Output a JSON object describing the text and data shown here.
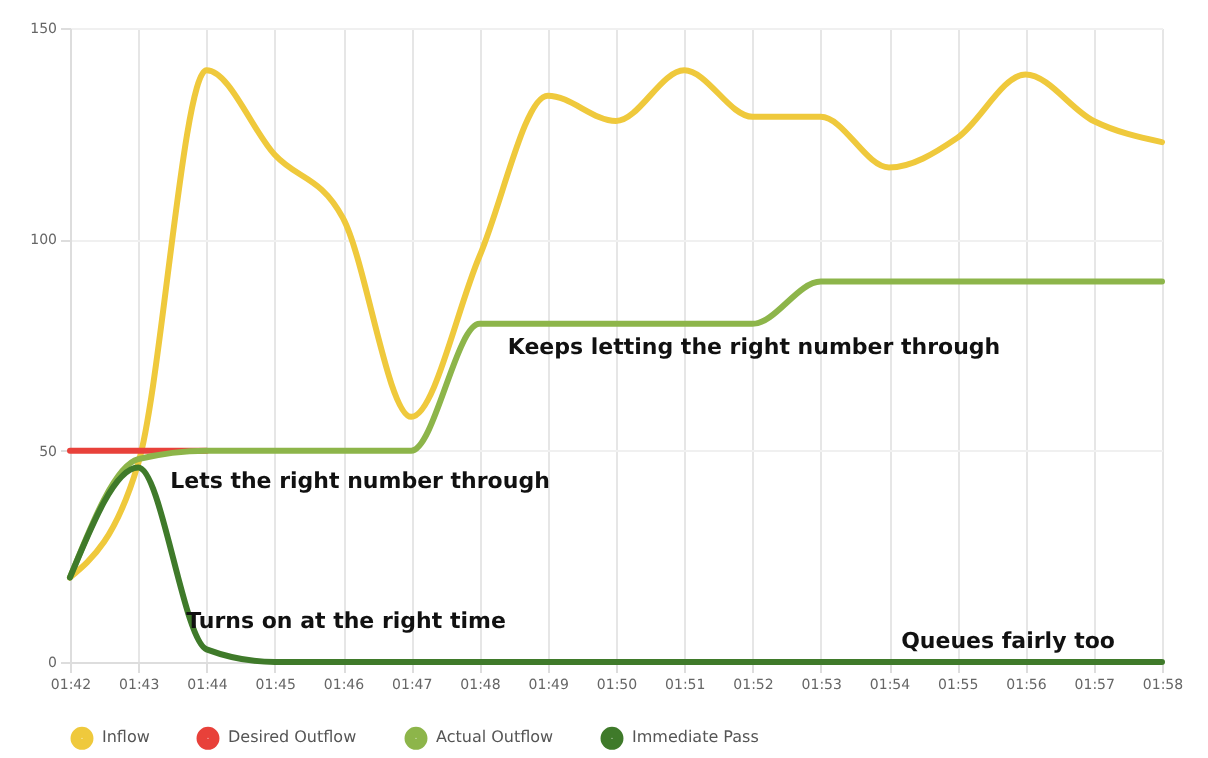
{
  "chart_data": {
    "type": "line",
    "categories": [
      "01:42",
      "01:43",
      "01:44",
      "01:45",
      "01:46",
      "01:47",
      "01:48",
      "01:49",
      "01:50",
      "01:51",
      "01:52",
      "01:53",
      "01:54",
      "01:55",
      "01:56",
      "01:57",
      "01:58"
    ],
    "series": [
      {
        "name": "Inflow",
        "color": "#efc93c",
        "values": [
          20,
          47,
          140,
          120,
          105,
          58,
          96,
          134,
          128,
          140,
          129,
          129,
          117,
          124,
          139,
          128,
          123
        ]
      },
      {
        "name": "Desired Outflow",
        "color": "#e8413a",
        "values": [
          50,
          50,
          50,
          null,
          null,
          null,
          null,
          null,
          null,
          null,
          null,
          null,
          null,
          null,
          null,
          null,
          null
        ]
      },
      {
        "name": "Actual Outflow",
        "color": "#8db54a",
        "values": [
          20,
          48,
          50,
          50,
          50,
          50,
          80,
          80,
          80,
          80,
          80,
          90,
          90,
          90,
          90,
          90,
          90
        ]
      },
      {
        "name": "Immediate Pass",
        "color": "#3f7a2a",
        "values": [
          20,
          46,
          3,
          0,
          0,
          0,
          0,
          0,
          0,
          0,
          0,
          0,
          0,
          0,
          0,
          0,
          0
        ]
      }
    ],
    "ylim": [
      0,
      150
    ],
    "yticks": [
      0,
      50,
      100,
      150
    ],
    "grid": true,
    "legend": "bottom",
    "annotations": [
      "Lets the right number through",
      "Keeps letting the right number through",
      "Turns on at the right time",
      "Queues fairly too"
    ]
  }
}
